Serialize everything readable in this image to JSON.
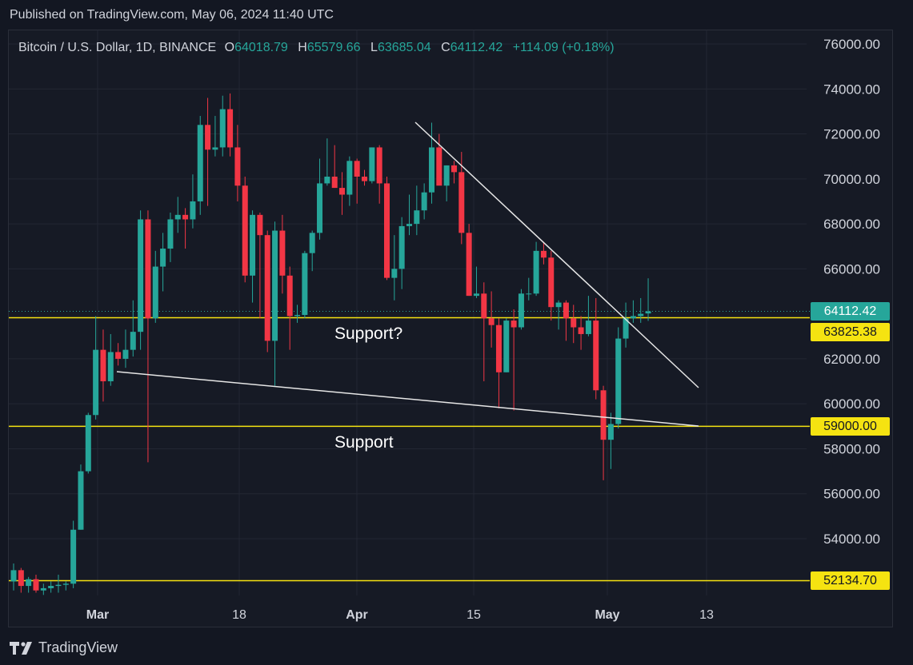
{
  "header": {
    "published": "Published on TradingView.com, May 06, 2024 11:40 UTC"
  },
  "legend": {
    "symbol": "Bitcoin / U.S. Dollar, 1D, BINANCE",
    "open_label": "O",
    "open": "64018.79",
    "high_label": "H",
    "high": "65579.66",
    "low_label": "L",
    "low": "63685.04",
    "close_label": "C",
    "close": "64112.42",
    "change": "+114.09 (+0.18%)"
  },
  "price_tags": {
    "last": "64112.42",
    "resistance": "63825.38",
    "support": "59000.00",
    "low_level": "52134.70"
  },
  "annotations": {
    "support_q": "Support?",
    "support": "Support"
  },
  "footer": {
    "brand": "TradingView"
  },
  "colors": {
    "up": "#26a69a",
    "down": "#f23645",
    "level": "#f5e311",
    "bg": "#161a25"
  },
  "chart_data": {
    "type": "candlestick",
    "y_ticks": [
      "76000.00",
      "74000.00",
      "72000.00",
      "70000.00",
      "68000.00",
      "66000.00",
      "62000.00",
      "60000.00",
      "58000.00",
      "56000.00",
      "54000.00"
    ],
    "y_tick_values": [
      76000,
      74000,
      72000,
      70000,
      68000,
      66000,
      62000,
      60000,
      58000,
      56000,
      54000
    ],
    "x_ticks": [
      "Mar",
      "18",
      "Apr",
      "15",
      "May",
      "13"
    ],
    "ylim": [
      51500,
      76700
    ],
    "horizontal_levels": [
      63825.38,
      59000.0,
      52134.7
    ],
    "last_price": 64112.42,
    "candles": [
      {
        "o": 52100,
        "h": 52900,
        "l": 51700,
        "c": 52600
      },
      {
        "o": 52600,
        "h": 52700,
        "l": 51600,
        "c": 51900
      },
      {
        "o": 51900,
        "h": 52300,
        "l": 51600,
        "c": 52200
      },
      {
        "o": 52200,
        "h": 52400,
        "l": 51600,
        "c": 51700
      },
      {
        "o": 51700,
        "h": 52000,
        "l": 51500,
        "c": 51800
      },
      {
        "o": 51800,
        "h": 52100,
        "l": 51600,
        "c": 51900
      },
      {
        "o": 51900,
        "h": 52400,
        "l": 51600,
        "c": 51950
      },
      {
        "o": 51950,
        "h": 52100,
        "l": 51700,
        "c": 52000
      },
      {
        "o": 52000,
        "h": 54800,
        "l": 51800,
        "c": 54400
      },
      {
        "o": 54400,
        "h": 57300,
        "l": 54400,
        "c": 57000
      },
      {
        "o": 57000,
        "h": 59600,
        "l": 56900,
        "c": 59500
      },
      {
        "o": 59500,
        "h": 63900,
        "l": 59300,
        "c": 62400
      },
      {
        "o": 62400,
        "h": 63300,
        "l": 60100,
        "c": 61000
      },
      {
        "o": 61000,
        "h": 63100,
        "l": 60800,
        "c": 62300
      },
      {
        "o": 62300,
        "h": 62700,
        "l": 61700,
        "c": 62000
      },
      {
        "o": 62000,
        "h": 63300,
        "l": 61600,
        "c": 62400
      },
      {
        "o": 62400,
        "h": 64600,
        "l": 62100,
        "c": 63200
      },
      {
        "o": 63200,
        "h": 68600,
        "l": 62400,
        "c": 68200
      },
      {
        "o": 68200,
        "h": 68600,
        "l": 57400,
        "c": 63800
      },
      {
        "o": 63800,
        "h": 66800,
        "l": 63600,
        "c": 66100
      },
      {
        "o": 66100,
        "h": 67600,
        "l": 65000,
        "c": 66900
      },
      {
        "o": 66900,
        "h": 68500,
        "l": 66300,
        "c": 68200
      },
      {
        "o": 68200,
        "h": 69200,
        "l": 67600,
        "c": 68400
      },
      {
        "o": 68400,
        "h": 68700,
        "l": 66900,
        "c": 68200
      },
      {
        "o": 68200,
        "h": 70200,
        "l": 67800,
        "c": 69000
      },
      {
        "o": 69000,
        "h": 72800,
        "l": 68400,
        "c": 72400
      },
      {
        "o": 72400,
        "h": 73600,
        "l": 68800,
        "c": 71300
      },
      {
        "o": 71300,
        "h": 72800,
        "l": 71000,
        "c": 71400
      },
      {
        "o": 71400,
        "h": 73700,
        "l": 71000,
        "c": 73100
      },
      {
        "o": 73100,
        "h": 73800,
        "l": 71000,
        "c": 71400
      },
      {
        "o": 71400,
        "h": 72400,
        "l": 69000,
        "c": 69700
      },
      {
        "o": 69700,
        "h": 70100,
        "l": 65400,
        "c": 65700
      },
      {
        "o": 65700,
        "h": 68600,
        "l": 64500,
        "c": 68400
      },
      {
        "o": 68400,
        "h": 68500,
        "l": 63800,
        "c": 67500
      },
      {
        "o": 67500,
        "h": 67700,
        "l": 62300,
        "c": 62800
      },
      {
        "o": 62800,
        "h": 68100,
        "l": 60800,
        "c": 67700
      },
      {
        "o": 67700,
        "h": 68400,
        "l": 64900,
        "c": 65700
      },
      {
        "o": 65700,
        "h": 66100,
        "l": 62400,
        "c": 63900
      },
      {
        "o": 63900,
        "h": 64400,
        "l": 63600,
        "c": 63950
      },
      {
        "o": 63950,
        "h": 66800,
        "l": 63800,
        "c": 66700
      },
      {
        "o": 66700,
        "h": 67700,
        "l": 65900,
        "c": 67600
      },
      {
        "o": 67600,
        "h": 70900,
        "l": 67300,
        "c": 69800
      },
      {
        "o": 69800,
        "h": 71800,
        "l": 69700,
        "c": 70100
      },
      {
        "o": 70100,
        "h": 71500,
        "l": 69600,
        "c": 69600
      },
      {
        "o": 69600,
        "h": 70300,
        "l": 68400,
        "c": 69300
      },
      {
        "o": 69300,
        "h": 71000,
        "l": 68800,
        "c": 70800
      },
      {
        "o": 70800,
        "h": 70900,
        "l": 68900,
        "c": 70100
      },
      {
        "o": 70100,
        "h": 70400,
        "l": 69700,
        "c": 69900
      },
      {
        "o": 69900,
        "h": 71400,
        "l": 69800,
        "c": 71400
      },
      {
        "o": 71400,
        "h": 71500,
        "l": 68900,
        "c": 69800
      },
      {
        "o": 69800,
        "h": 70100,
        "l": 65500,
        "c": 65600
      },
      {
        "o": 65600,
        "h": 67500,
        "l": 64600,
        "c": 66000
      },
      {
        "o": 66000,
        "h": 68300,
        "l": 65100,
        "c": 67900
      },
      {
        "o": 67900,
        "h": 69300,
        "l": 67500,
        "c": 68000
      },
      {
        "o": 68000,
        "h": 69700,
        "l": 67500,
        "c": 68600
      },
      {
        "o": 68600,
        "h": 69800,
        "l": 68200,
        "c": 69400
      },
      {
        "o": 69400,
        "h": 72500,
        "l": 68900,
        "c": 71400
      },
      {
        "o": 71400,
        "h": 72000,
        "l": 69900,
        "c": 69700
      },
      {
        "o": 69700,
        "h": 70600,
        "l": 69000,
        "c": 70600
      },
      {
        "o": 70600,
        "h": 70800,
        "l": 69800,
        "c": 70300
      },
      {
        "o": 70300,
        "h": 71200,
        "l": 67100,
        "c": 67600
      },
      {
        "o": 67600,
        "h": 68000,
        "l": 64800,
        "c": 64800
      },
      {
        "o": 64800,
        "h": 66100,
        "l": 64700,
        "c": 64900
      },
      {
        "o": 64900,
        "h": 65400,
        "l": 61000,
        "c": 63800
      },
      {
        "o": 63800,
        "h": 65000,
        "l": 62500,
        "c": 63500
      },
      {
        "o": 63500,
        "h": 63800,
        "l": 59800,
        "c": 61400
      },
      {
        "o": 61400,
        "h": 63800,
        "l": 61400,
        "c": 63700
      },
      {
        "o": 63700,
        "h": 64200,
        "l": 59700,
        "c": 63400
      },
      {
        "o": 63400,
        "h": 65100,
        "l": 63300,
        "c": 64900
      },
      {
        "o": 64900,
        "h": 65600,
        "l": 64600,
        "c": 64900
      },
      {
        "o": 64900,
        "h": 67200,
        "l": 64800,
        "c": 66800
      },
      {
        "o": 66800,
        "h": 67200,
        "l": 66200,
        "c": 66500
      },
      {
        "o": 66500,
        "h": 66800,
        "l": 63700,
        "c": 64300
      },
      {
        "o": 64300,
        "h": 64600,
        "l": 63300,
        "c": 64500
      },
      {
        "o": 64500,
        "h": 64600,
        "l": 62800,
        "c": 63800
      },
      {
        "o": 63800,
        "h": 64400,
        "l": 62700,
        "c": 63400
      },
      {
        "o": 63400,
        "h": 63900,
        "l": 62400,
        "c": 63100
      },
      {
        "o": 63100,
        "h": 64800,
        "l": 63000,
        "c": 63700
      },
      {
        "o": 63700,
        "h": 64700,
        "l": 60200,
        "c": 60600
      },
      {
        "o": 60600,
        "h": 60800,
        "l": 56600,
        "c": 58400
      },
      {
        "o": 58400,
        "h": 59600,
        "l": 57100,
        "c": 59100
      },
      {
        "o": 59100,
        "h": 63400,
        "l": 58900,
        "c": 62900
      },
      {
        "o": 62900,
        "h": 64500,
        "l": 62500,
        "c": 63800
      },
      {
        "o": 63800,
        "h": 64600,
        "l": 63600,
        "c": 63900
      },
      {
        "o": 63900,
        "h": 64700,
        "l": 63600,
        "c": 64000
      },
      {
        "o": 64018.79,
        "h": 65579.66,
        "l": 63685.04,
        "c": 64112.42
      }
    ]
  }
}
